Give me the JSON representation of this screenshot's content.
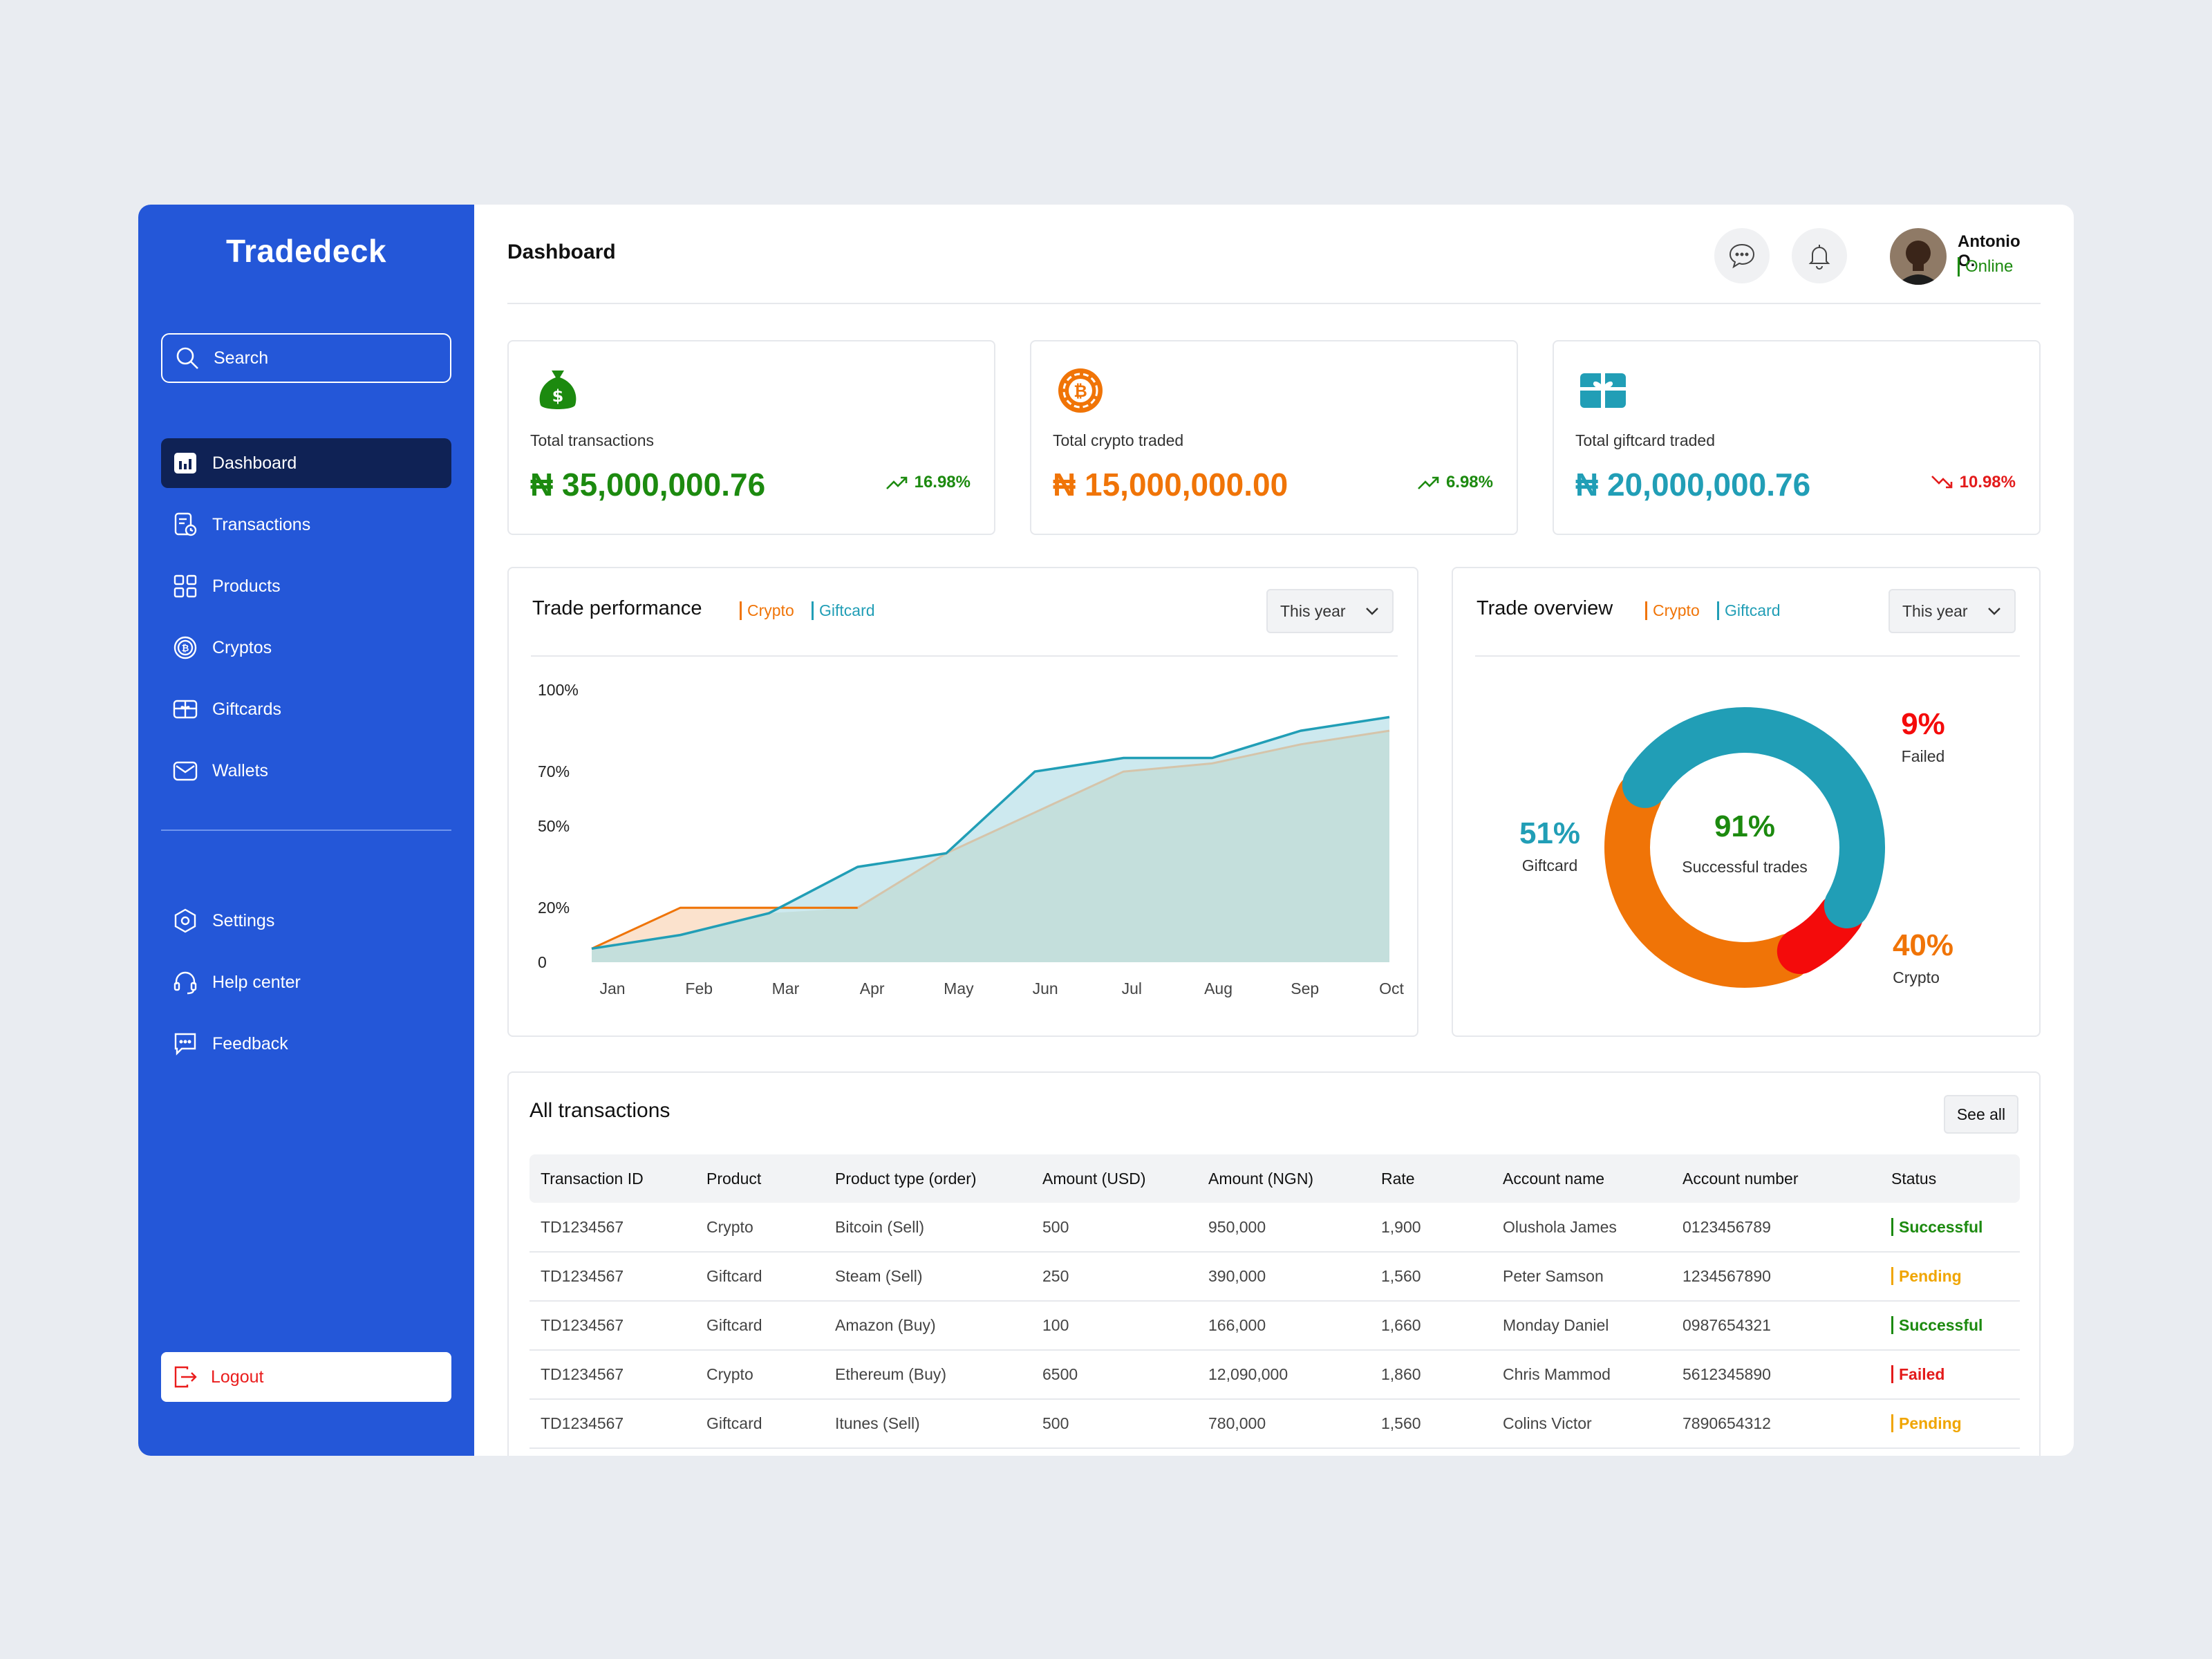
{
  "sidebar": {
    "brand": "Tradedeck",
    "search_placeholder": "Search",
    "items": [
      {
        "label": "Dashboard"
      },
      {
        "label": "Transactions"
      },
      {
        "label": "Products"
      },
      {
        "label": "Cryptos"
      },
      {
        "label": "Giftcards"
      },
      {
        "label": "Wallets"
      }
    ],
    "secondary": [
      {
        "label": "Settings"
      },
      {
        "label": "Help center"
      },
      {
        "label": "Feedback"
      }
    ],
    "logout": "Logout"
  },
  "header": {
    "title": "Dashboard",
    "user_name": "Antonio O.",
    "user_status": "Online"
  },
  "stats": [
    {
      "label": "Total transactions",
      "value": "₦ 35,000,000.76",
      "change": "16.98%",
      "trend": "up",
      "color": "#1c8a0f"
    },
    {
      "label": "Total crypto traded",
      "value": "₦ 15,000,000.00",
      "change": "6.98%",
      "trend": "up",
      "color": "#f07407"
    },
    {
      "label": "Total giftcard traded",
      "value": "₦ 20,000,000.76",
      "change": "10.98%",
      "trend": "down",
      "color": "#219eb6"
    }
  ],
  "performance": {
    "title": "Trade performance",
    "legend_crypto": "Crypto",
    "legend_giftcard": "Giftcard",
    "period": "This year"
  },
  "overview": {
    "title": "Trade overview",
    "legend_crypto": "Crypto",
    "legend_giftcard": "Giftcard",
    "period": "This year",
    "center_value": "91%",
    "center_label": "Successful trades",
    "giftcard_value": "51%",
    "giftcard_label": "Giftcard",
    "failed_value": "9%",
    "failed_label": "Failed",
    "crypto_value": "40%",
    "crypto_label": "Crypto"
  },
  "chart_data": [
    {
      "type": "area",
      "title": "Trade performance",
      "categories": [
        "Jan",
        "Feb",
        "Mar",
        "Apr",
        "May",
        "Jun",
        "Jul",
        "Aug",
        "Sep",
        "Oct"
      ],
      "y_ticks": [
        "0",
        "20%",
        "50%",
        "70%",
        "100%"
      ],
      "ylim": [
        0,
        100
      ],
      "series": [
        {
          "name": "Crypto",
          "color": "#f07407",
          "values": [
            5,
            20,
            20,
            20,
            40,
            55,
            70,
            73,
            80,
            85
          ]
        },
        {
          "name": "Giftcard",
          "color": "#219eb6",
          "values": [
            5,
            10,
            18,
            35,
            40,
            70,
            75,
            75,
            85,
            90
          ]
        }
      ],
      "grid": false
    },
    {
      "type": "pie",
      "title": "Trade overview",
      "slices": [
        {
          "name": "Giftcard",
          "value": 51,
          "color": "#219eb6"
        },
        {
          "name": "Failed",
          "value": 9,
          "color": "#f40b0b"
        },
        {
          "name": "Crypto",
          "value": 40,
          "color": "#f07407"
        }
      ]
    }
  ],
  "transactions": {
    "title": "All transactions",
    "see_all": "See all",
    "columns": [
      "Transaction ID",
      "Product",
      "Product type (order)",
      "Amount (USD)",
      "Amount (NGN)",
      "Rate",
      "Account name",
      "Account number",
      "Status"
    ],
    "rows": [
      [
        "TD1234567",
        "Crypto",
        "Bitcoin (Sell)",
        "500",
        "950,000",
        "1,900",
        "Olushola James",
        "0123456789",
        "Successful"
      ],
      [
        "TD1234567",
        "Giftcard",
        "Steam (Sell)",
        "250",
        "390,000",
        "1,560",
        "Peter Samson",
        "1234567890",
        "Pending"
      ],
      [
        "TD1234567",
        "Giftcard",
        "Amazon (Buy)",
        "100",
        "166,000",
        "1,660",
        "Monday Daniel",
        "0987654321",
        "Successful"
      ],
      [
        "TD1234567",
        "Crypto",
        "Ethereum (Buy)",
        "6500",
        "12,090,000",
        "1,860",
        "Chris Mammod",
        "5612345890",
        "Failed"
      ],
      [
        "TD1234567",
        "Giftcard",
        "Itunes (Sell)",
        "500",
        "780,000",
        "1,560",
        "Colins Victor",
        "7890654312",
        "Pending"
      ]
    ],
    "status_colors": {
      "Successful": "#1c8a0f",
      "Pending": "#f0a500",
      "Failed": "#e31b1b"
    }
  }
}
